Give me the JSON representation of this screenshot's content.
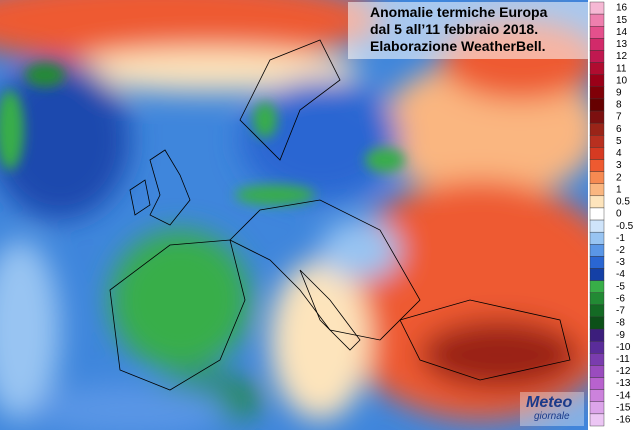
{
  "title": {
    "lines": [
      "Anomalie termiche Europa",
      "dal 5 all’11 febbraio 2018.",
      "Elaborazione WeatherBell."
    ]
  },
  "legend": {
    "items": [
      {
        "label": "16",
        "color": "#f6b8d4"
      },
      {
        "label": "15",
        "color": "#ee7fae"
      },
      {
        "label": "14",
        "color": "#e4508c"
      },
      {
        "label": "13",
        "color": "#d22a6a"
      },
      {
        "label": "12",
        "color": "#c01850"
      },
      {
        "label": "11",
        "color": "#b00c30"
      },
      {
        "label": "10",
        "color": "#9a0018"
      },
      {
        "label": "9",
        "color": "#800008"
      },
      {
        "label": "8",
        "color": "#660000"
      },
      {
        "label": "7",
        "color": "#7c1010"
      },
      {
        "label": "6",
        "color": "#9a2418"
      },
      {
        "label": "5",
        "color": "#b83020"
      },
      {
        "label": "4",
        "color": "#d63a22"
      },
      {
        "label": "3",
        "color": "#ee5a30"
      },
      {
        "label": "2",
        "color": "#f68a52"
      },
      {
        "label": "1",
        "color": "#fab680"
      },
      {
        "label": "0.5",
        "color": "#fde4bc"
      },
      {
        "label": "0",
        "color": "#ffffff"
      },
      {
        "label": "-0.5",
        "color": "#cfe4fa"
      },
      {
        "label": "-1",
        "color": "#98c4f2"
      },
      {
        "label": "-2",
        "color": "#5a96e6"
      },
      {
        "label": "-3",
        "color": "#2a66d2"
      },
      {
        "label": "-4",
        "color": "#1440a6"
      },
      {
        "label": "-5",
        "color": "#38ae48"
      },
      {
        "label": "-6",
        "color": "#228a34"
      },
      {
        "label": "-7",
        "color": "#146a24"
      },
      {
        "label": "-8",
        "color": "#0c5018"
      },
      {
        "label": "-9",
        "color": "#3c1e7c"
      },
      {
        "label": "-10",
        "color": "#5a2c9a"
      },
      {
        "label": "-11",
        "color": "#7a3cae"
      },
      {
        "label": "-12",
        "color": "#9a4cbe"
      },
      {
        "label": "-13",
        "color": "#b862ce"
      },
      {
        "label": "-14",
        "color": "#cc82dc"
      },
      {
        "label": "-15",
        "color": "#dca4ea"
      },
      {
        "label": "-16",
        "color": "#ecc6f4"
      }
    ]
  },
  "logo": {
    "line1": "Meteo",
    "line2": "giornale"
  }
}
